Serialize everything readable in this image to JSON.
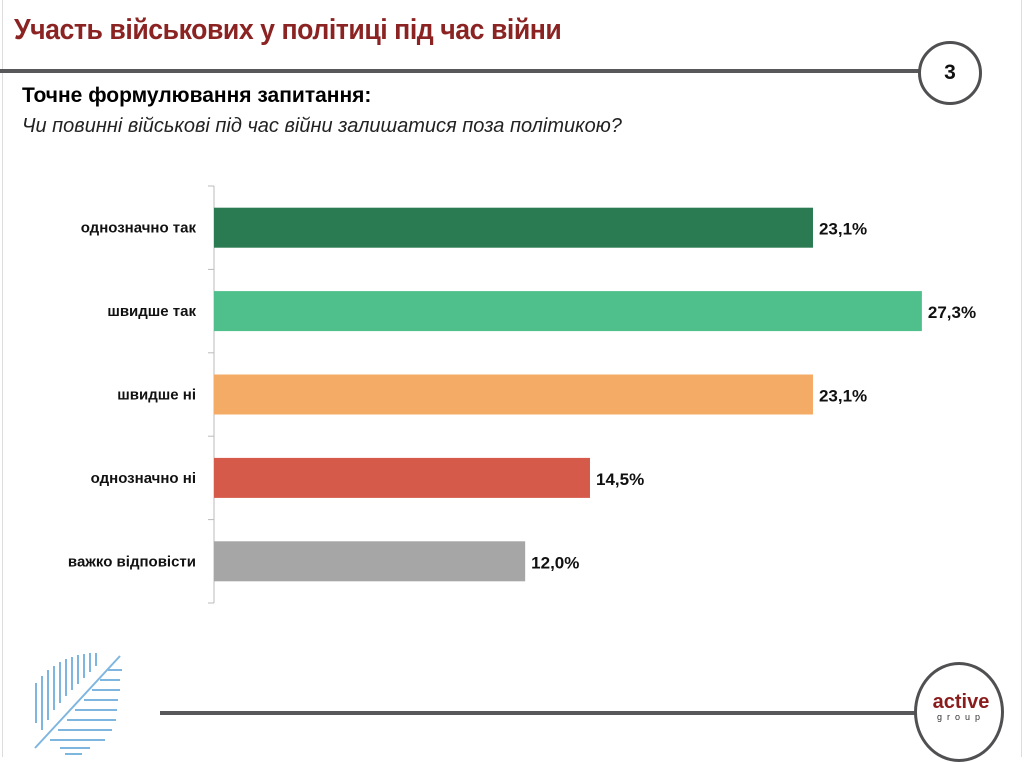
{
  "header": {
    "title": "Участь військових у політиці під час війни",
    "page_number": "3"
  },
  "question": {
    "heading": "Точне формулювання запитання:",
    "text": "Чи повинні військові під час війни залишатися поза політикою?"
  },
  "logo": {
    "active": "active",
    "group": "group"
  },
  "chart_data": {
    "type": "bar",
    "orientation": "horizontal",
    "title": "Чи повинні військові під час війни залишатися поза політикою?",
    "categories": [
      "однозначно так",
      "швидше так",
      "швидше ні",
      "однозначно ні",
      "важко відповісти"
    ],
    "values": [
      23.1,
      27.3,
      23.1,
      14.5,
      12.0
    ],
    "labels": [
      "23,1%",
      "27,3%",
      "23,1%",
      "14,5%",
      "12,0%"
    ],
    "colors": [
      "#2a7a52",
      "#4fc08c",
      "#f4ab66",
      "#d65a4a",
      "#a6a6a6"
    ],
    "unit": "%",
    "grid": false
  }
}
